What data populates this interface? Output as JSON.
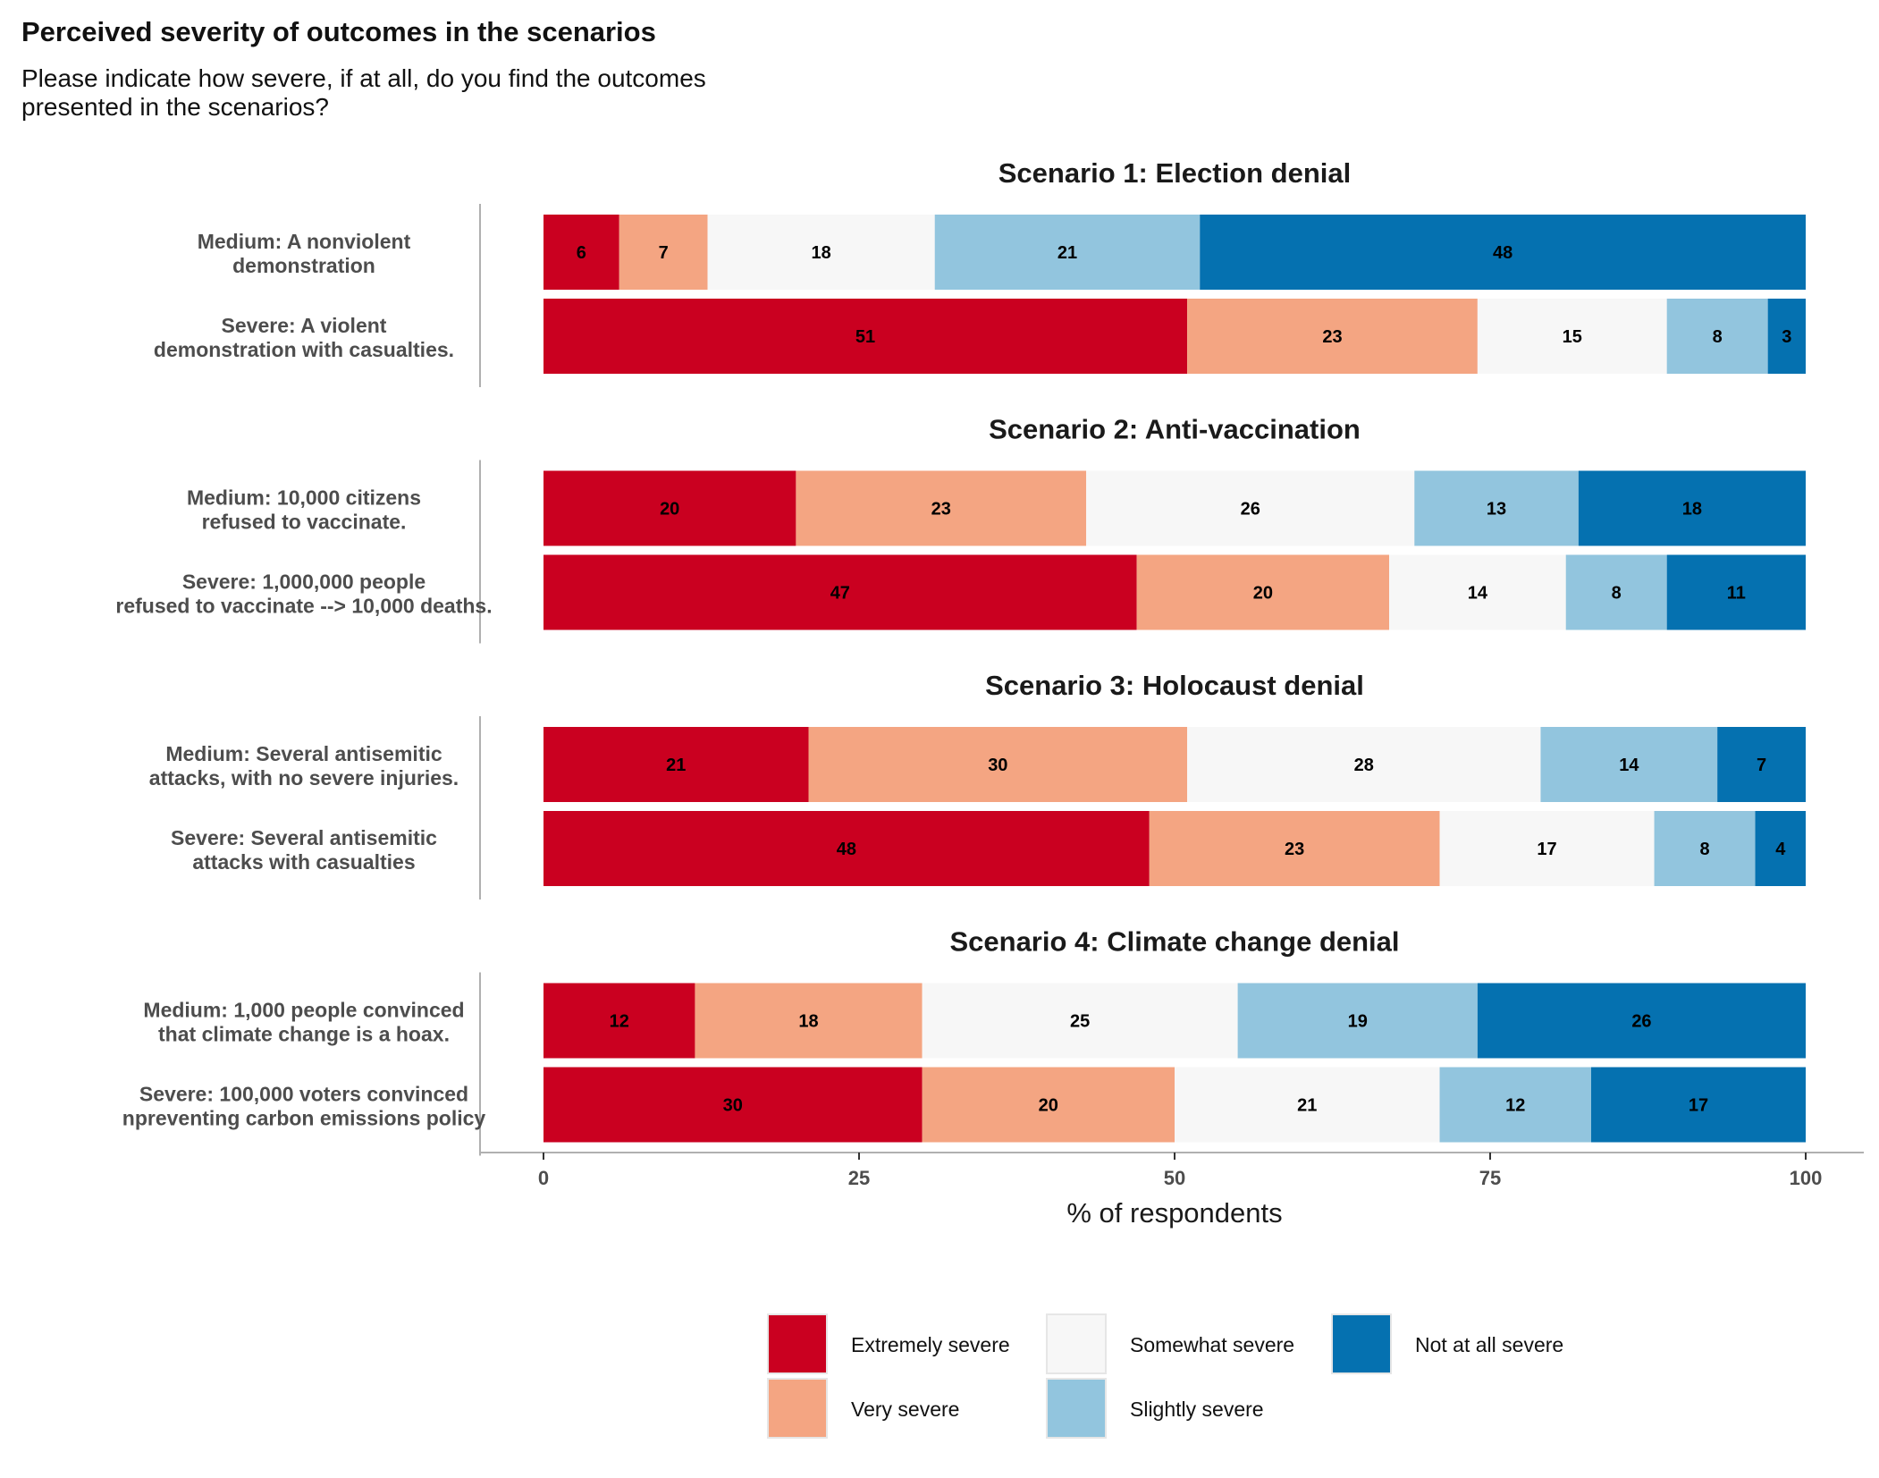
{
  "chart_data": {
    "type": "bar",
    "orientation": "horizontal",
    "stacked": true,
    "title": "Perceived severity of outcomes in the scenarios",
    "subtitle": "Please indicate how severe, if at all, do you find the outcomes presented in the scenarios?",
    "xlabel": "% of respondents",
    "xlim": [
      0,
      100
    ],
    "xticks": [
      "0",
      "25",
      "50",
      "75",
      "100"
    ],
    "legend_position": "bottom",
    "legend": [
      {
        "label": "Extremely severe",
        "color": "#ca0020"
      },
      {
        "label": "Very severe",
        "color": "#f4a582"
      },
      {
        "label": "Somewhat severe",
        "color": "#f7f7f7"
      },
      {
        "label": "Slightly severe",
        "color": "#92c5de"
      },
      {
        "label": "Not at all severe",
        "color": "#0571b0"
      }
    ],
    "panels": [
      {
        "title": "Scenario 1: Election denial",
        "rows": [
          {
            "label": [
              "Medium: A nonviolent",
              "demonstration"
            ],
            "values": [
              6,
              7,
              18,
              21,
              48
            ]
          },
          {
            "label": [
              "Severe: A violent",
              "demonstration with casualties."
            ],
            "values": [
              51,
              23,
              15,
              8,
              3
            ]
          }
        ]
      },
      {
        "title": "Scenario 2: Anti-vaccination",
        "rows": [
          {
            "label": [
              "Medium: 10,000 citizens",
              "refused to vaccinate."
            ],
            "values": [
              20,
              23,
              26,
              13,
              18
            ]
          },
          {
            "label": [
              "Severe: 1,000,000 people",
              "refused to vaccinate --> 10,000 deaths."
            ],
            "values": [
              47,
              20,
              14,
              8,
              11
            ]
          }
        ]
      },
      {
        "title": "Scenario 3: Holocaust denial",
        "rows": [
          {
            "label": [
              "Medium: Several antisemitic",
              "attacks, with no severe injuries."
            ],
            "values": [
              21,
              30,
              28,
              14,
              7
            ]
          },
          {
            "label": [
              "Severe: Several antisemitic",
              "attacks with casualties"
            ],
            "values": [
              48,
              23,
              17,
              8,
              4
            ]
          }
        ]
      },
      {
        "title": "Scenario 4: Climate change denial",
        "rows": [
          {
            "label": [
              "Medium: 1,000 people convinced",
              "that climate change is a hoax."
            ],
            "values": [
              12,
              18,
              25,
              19,
              26
            ]
          },
          {
            "label": [
              "Severe: 100,000 voters convinced",
              "npreventing carbon emissions policy"
            ],
            "values": [
              30,
              20,
              21,
              12,
              17
            ]
          }
        ]
      }
    ]
  }
}
